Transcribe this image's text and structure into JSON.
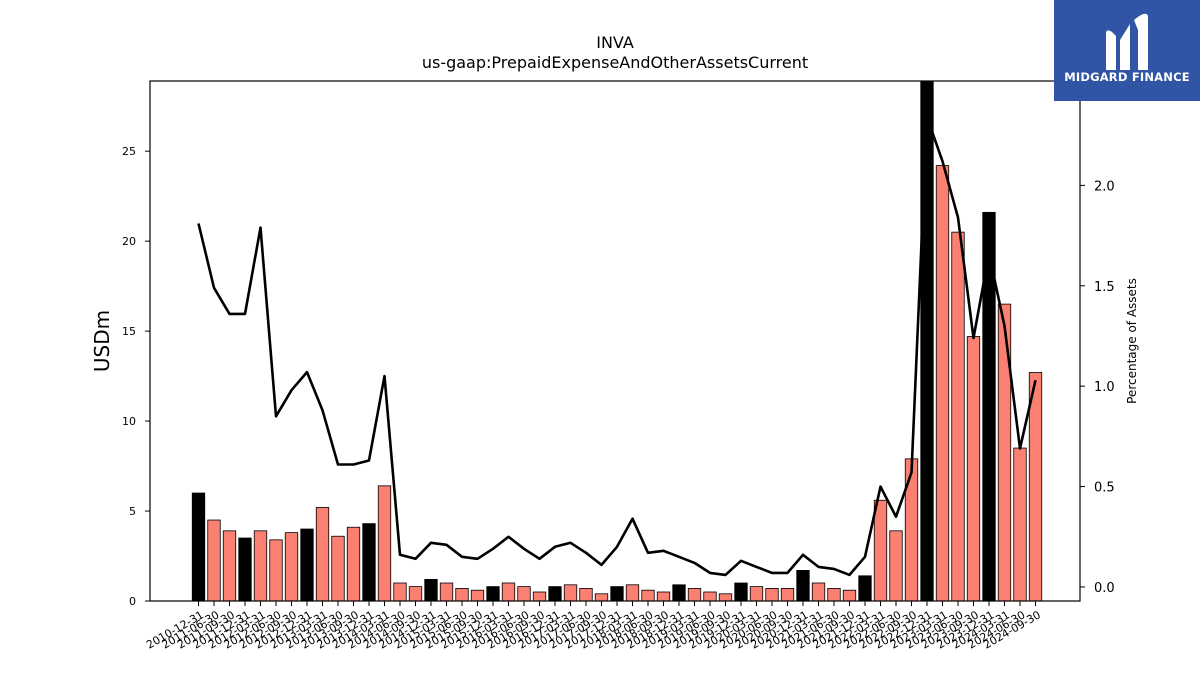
{
  "chart_data": {
    "type": "bar",
    "title": "INVA",
    "subtitle": "us-gaap:PrepaidExpenseAndOtherAssetsCurrent",
    "ylabel": "USDm",
    "y2label": "Percentage of Assets",
    "ylim": [
      0,
      28.9
    ],
    "y2lim": [
      -0.07,
      2.52
    ],
    "yticks": [
      0,
      5,
      10,
      15,
      20,
      25
    ],
    "y2ticks": [
      "0.0",
      "0.5",
      "1.0",
      "1.5",
      "2.0"
    ],
    "categories": [
      "2010-12-31",
      "2011-06-30",
      "2011-09-30",
      "2011-12-31",
      "2012-03-31",
      "2012-06-30",
      "2012-09-30",
      "2012-12-31",
      "2013-03-31",
      "2013-06-30",
      "2013-09-30",
      "2013-12-31",
      "2014-03-31",
      "2014-06-30",
      "2014-09-30",
      "2014-12-31",
      "2015-03-31",
      "2015-06-30",
      "2015-09-30",
      "2015-12-31",
      "2016-03-31",
      "2016-06-30",
      "2016-09-30",
      "2016-12-31",
      "2017-03-31",
      "2017-06-30",
      "2017-09-30",
      "2017-12-31",
      "2018-03-31",
      "2018-06-30",
      "2018-09-30",
      "2018-12-31",
      "2019-03-31",
      "2019-06-30",
      "2019-09-30",
      "2019-12-31",
      "2020-03-31",
      "2020-06-30",
      "2020-09-30",
      "2020-12-31",
      "2021-03-31",
      "2021-06-30",
      "2021-09-30",
      "2021-12-31",
      "2022-03-31",
      "2022-06-30",
      "2022-09-30",
      "2022-12-31",
      "2023-03-31",
      "2023-06-30",
      "2023-09-30",
      "2023-12-31",
      "2024-03-31",
      "2024-06-30",
      "2024-09-30"
    ],
    "series": [
      {
        "values": [
          6.0,
          4.5,
          3.9,
          3.5,
          3.9,
          3.4,
          3.8,
          4.0,
          5.2,
          3.6,
          4.1,
          4.3,
          6.4,
          1.0,
          0.8,
          1.2,
          1.0,
          0.7,
          0.6,
          0.8,
          1.0,
          0.8,
          0.5,
          0.8,
          0.9,
          0.7,
          0.4,
          0.8,
          0.9,
          0.6,
          0.5,
          0.9,
          0.7,
          0.5,
          0.4,
          1.0,
          0.8,
          0.7,
          0.7,
          1.7,
          1.0,
          0.7,
          0.6,
          1.4,
          5.6,
          3.9,
          7.9,
          28.9,
          24.2,
          20.5,
          14.7,
          21.6,
          16.5,
          8.5,
          12.7
        ],
        "highlight": [
          true,
          false,
          false,
          true,
          false,
          false,
          false,
          true,
          false,
          false,
          false,
          true,
          false,
          false,
          false,
          true,
          false,
          false,
          false,
          true,
          false,
          false,
          false,
          true,
          false,
          false,
          false,
          true,
          false,
          false,
          false,
          true,
          false,
          false,
          false,
          true,
          false,
          false,
          false,
          true,
          false,
          false,
          false,
          true,
          false,
          false,
          false,
          true,
          false,
          false,
          false,
          true,
          false,
          false,
          false
        ]
      },
      {
        "axis": "right",
        "values": [
          1.81,
          1.49,
          1.36,
          1.36,
          1.79,
          0.85,
          0.98,
          1.07,
          0.88,
          0.61,
          0.61,
          0.63,
          1.05,
          0.16,
          0.14,
          0.22,
          0.21,
          0.15,
          0.14,
          0.19,
          0.25,
          0.19,
          0.14,
          0.2,
          0.22,
          0.17,
          0.11,
          0.2,
          0.34,
          0.17,
          0.18,
          0.15,
          0.12,
          0.07,
          0.06,
          0.13,
          0.1,
          0.07,
          0.07,
          0.16,
          0.1,
          0.09,
          0.06,
          0.15,
          0.5,
          0.35,
          0.57,
          2.34,
          2.12,
          1.84,
          1.24,
          1.66,
          1.3,
          0.69,
          1.03
        ]
      }
    ],
    "colors": {
      "bar": "#fa8072",
      "bar_highlight": "#000000",
      "line": "#000000"
    }
  },
  "logo": {
    "text": "MIDGARD FINANCE"
  }
}
